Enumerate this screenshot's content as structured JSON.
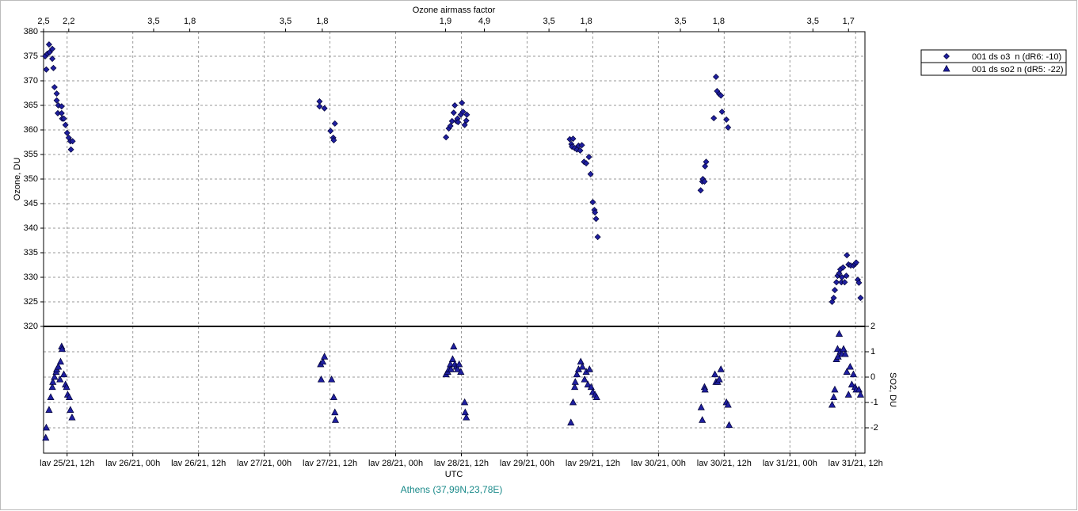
{
  "chart_data": {
    "type": "scatter",
    "title": "Ozone airmass factor",
    "ylabel": "Ozone, DU",
    "y2label": "SO2, DU",
    "xlabel": "UTC",
    "subtitle": "Athens (37,99N,23,78E)",
    "grid": true,
    "legend": "top-right",
    "xlim": [
      7.7,
      157.7
    ],
    "xticks": [
      {
        "value": 12,
        "label": "lav 25/21, 12h"
      },
      {
        "value": 24,
        "label": "lav 26/21, 00h"
      },
      {
        "value": 36,
        "label": "lav 26/21, 12h"
      },
      {
        "value": 48,
        "label": "lav 27/21, 00h"
      },
      {
        "value": 60,
        "label": "lav 27/21, 12h"
      },
      {
        "value": 72,
        "label": "lav 28/21, 00h"
      },
      {
        "value": 84,
        "label": "lav 28/21, 12h"
      },
      {
        "value": 96,
        "label": "lav 29/21, 00h"
      },
      {
        "value": 108,
        "label": "lav 29/21, 12h"
      },
      {
        "value": 120,
        "label": "lav 30/21, 00h"
      },
      {
        "value": 132,
        "label": "lav 30/21, 12h"
      },
      {
        "value": 144,
        "label": "lav 31/21, 00h"
      },
      {
        "value": 156,
        "label": "lav 31/21, 12h"
      }
    ],
    "top_ticks": [
      {
        "value": 7.7,
        "label": "2,5"
      },
      {
        "value": 12.3,
        "label": "2,2"
      },
      {
        "value": 27.8,
        "label": "3,5"
      },
      {
        "value": 34.4,
        "label": "1,8"
      },
      {
        "value": 51.9,
        "label": "3,5"
      },
      {
        "value": 58.6,
        "label": "1,8"
      },
      {
        "value": 81.1,
        "label": "1,9"
      },
      {
        "value": 88.2,
        "label": "4,9"
      },
      {
        "value": 100.0,
        "label": "3,5"
      },
      {
        "value": 106.8,
        "label": "1,8"
      },
      {
        "value": 124.0,
        "label": "3,5"
      },
      {
        "value": 131.0,
        "label": "1,8"
      },
      {
        "value": 148.2,
        "label": "3,5"
      },
      {
        "value": 154.7,
        "label": "1,7"
      }
    ],
    "ylim": [
      320,
      380
    ],
    "yticks": [
      320,
      325,
      330,
      335,
      340,
      345,
      350,
      355,
      360,
      365,
      370,
      375,
      380
    ],
    "y2lim": [
      -3,
      2
    ],
    "y2ticks": [
      -2,
      -1,
      0,
      1,
      2
    ],
    "series": [
      {
        "name": "001 ds o3  n (dR6: -10)",
        "color": "#1f1fa0",
        "marker": "diamond",
        "x": [
          8.0,
          8.2,
          8.4,
          8.7,
          8.8,
          9.3,
          9.3,
          9.5,
          9.7,
          10.1,
          10.1,
          10.4,
          10.3,
          11.0,
          11.0,
          11.1,
          11.4,
          11.7,
          12.0,
          12.3,
          12.6,
          13.0,
          12.7,
          58.1,
          58.1,
          59.0,
          60.1,
          60.9,
          60.6,
          60.7,
          81.2,
          81.7,
          82.0,
          82.3,
          82.6,
          82.8,
          83.1,
          83.3,
          83.4,
          83.9,
          84.1,
          84.3,
          84.6,
          84.9,
          85.0,
          103.8,
          104.1,
          104.4,
          104.2,
          104.7,
          105.1,
          105.4,
          105.7,
          106.0,
          106.4,
          106.8,
          107.3,
          107.6,
          108.0,
          108.3,
          108.4,
          108.6,
          108.9,
          127.7,
          128.0,
          128.1,
          128.4,
          128.5,
          128.7,
          130.1,
          130.5,
          130.7,
          131.1,
          131.4,
          131.6,
          132.4,
          132.7,
          151.7,
          152.0,
          152.2,
          152.5,
          152.7,
          153.0,
          153.2,
          153.5,
          153.4,
          153.7,
          154.0,
          154.3,
          154.4,
          154.7,
          155.1,
          155.6,
          155.9,
          156.1,
          156.4,
          156.6,
          156.9
        ],
        "values": [
          375.0,
          372.3,
          375.5,
          377.4,
          375.8,
          376.5,
          374.5,
          372.6,
          368.7,
          367.4,
          366.0,
          365.0,
          363.4,
          364.8,
          363.4,
          362.3,
          362.3,
          361.0,
          359.4,
          358.4,
          357.7,
          357.7,
          356.0,
          365.8,
          364.8,
          364.4,
          359.8,
          361.3,
          358.4,
          357.9,
          358.5,
          360.3,
          360.8,
          361.8,
          363.5,
          365.0,
          361.8,
          362.3,
          361.6,
          363.1,
          365.5,
          363.7,
          361.0,
          361.9,
          363.1,
          358.1,
          357.1,
          358.2,
          356.6,
          356.3,
          356.0,
          356.8,
          355.8,
          356.9,
          353.5,
          353.2,
          354.5,
          351.0,
          345.3,
          343.7,
          343.2,
          341.9,
          338.2,
          347.7,
          349.5,
          350.0,
          349.5,
          352.6,
          353.5,
          362.4,
          370.8,
          367.9,
          367.3,
          367.0,
          363.7,
          362.1,
          360.5,
          325.0,
          325.8,
          327.4,
          329.0,
          330.3,
          330.8,
          331.6,
          330.0,
          329.0,
          332.0,
          329.0,
          330.3,
          334.5,
          332.6,
          332.4,
          332.4,
          332.7,
          333.0,
          329.5,
          328.9,
          325.8
        ]
      },
      {
        "name": "001 ds so2 n (dR5: -22)",
        "color": "#1f1fa0",
        "marker": "triangle",
        "axis": "y2",
        "x": [
          8.1,
          8.2,
          8.7,
          9.0,
          9.3,
          9.4,
          9.7,
          10.0,
          10.1,
          10.4,
          10.7,
          10.8,
          11.0,
          11.1,
          11.4,
          11.7,
          11.9,
          12.1,
          12.4,
          12.6,
          12.9,
          58.3,
          58.7,
          59.0,
          58.4,
          60.3,
          60.7,
          60.9,
          61.0,
          81.2,
          81.5,
          81.7,
          82.0,
          82.1,
          82.4,
          82.6,
          82.8,
          83.1,
          83.3,
          83.6,
          83.9,
          84.6,
          84.7,
          84.9,
          104.0,
          104.4,
          104.7,
          104.8,
          105.1,
          105.4,
          105.8,
          106.1,
          106.5,
          106.8,
          107.1,
          107.4,
          107.7,
          108.0,
          108.4,
          108.7,
          127.8,
          128.0,
          128.4,
          128.5,
          130.3,
          130.5,
          130.8,
          131.1,
          131.4,
          132.4,
          132.7,
          132.9,
          151.7,
          152.0,
          152.2,
          152.5,
          152.7,
          152.8,
          153.0,
          153.2,
          153.5,
          153.8,
          154.1,
          154.4,
          154.7,
          155.0,
          155.3,
          155.6,
          155.9,
          156.1,
          156.6,
          156.9
        ],
        "values": [
          -2.4,
          -2.0,
          -1.3,
          -0.8,
          -0.4,
          -0.2,
          0.0,
          0.2,
          0.3,
          0.4,
          -0.1,
          0.6,
          1.2,
          1.1,
          0.1,
          -0.3,
          -0.4,
          -0.7,
          -0.8,
          -1.3,
          -1.6,
          0.5,
          0.6,
          0.8,
          -0.1,
          -0.1,
          -0.8,
          -1.4,
          -1.7,
          0.1,
          0.2,
          0.3,
          0.5,
          0.3,
          0.7,
          1.2,
          0.5,
          0.4,
          0.3,
          0.5,
          0.2,
          -1.0,
          -1.4,
          -1.6,
          -1.8,
          -1.0,
          -0.4,
          -0.2,
          0.1,
          0.3,
          0.6,
          0.4,
          -0.1,
          0.2,
          -0.3,
          0.3,
          -0.4,
          -0.6,
          -0.7,
          -0.8,
          -1.2,
          -1.7,
          -0.4,
          -0.5,
          0.1,
          -0.2,
          -0.2,
          -0.1,
          0.3,
          -1.0,
          -1.1,
          -1.9,
          -1.1,
          -0.8,
          -0.5,
          0.7,
          1.1,
          0.8,
          1.7,
          1.0,
          0.9,
          1.1,
          0.9,
          0.2,
          -0.7,
          0.4,
          -0.3,
          0.1,
          -0.4,
          -0.5,
          -0.5,
          -0.7
        ]
      }
    ]
  }
}
